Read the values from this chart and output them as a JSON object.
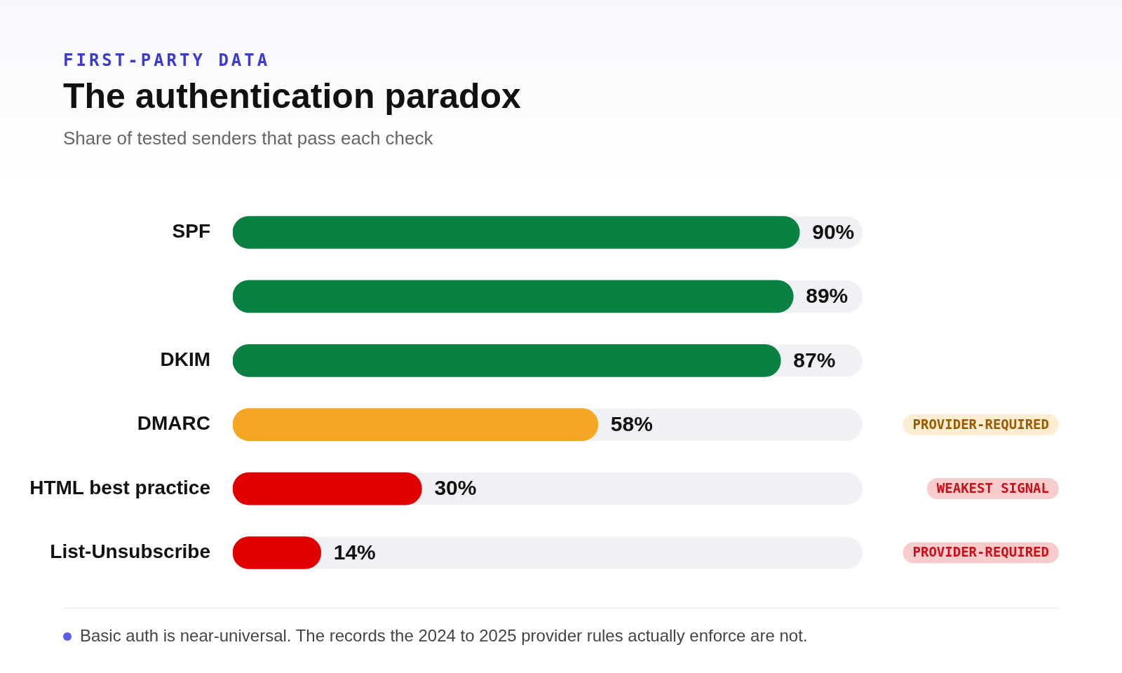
{
  "chart_data": {
    "type": "bar",
    "orientation": "horizontal",
    "title": "The authentication paradox",
    "subtitle": "Share of tested senders that pass each check",
    "legend_title": "FIRST-PARTY DATA",
    "categories": [
      "SPF",
      null,
      "DKIM",
      "DMARC",
      "HTML best practice",
      "List-Unsubscribe"
    ],
    "values": [
      90,
      89,
      87,
      58,
      30,
      14
    ],
    "colors": [
      "#0b8043",
      "#0b8043",
      "#0b8043",
      "#f5a623",
      "#e00000",
      "#e00000"
    ],
    "value_labels": [
      "90%",
      "89%",
      "87%",
      "58%",
      "30%",
      "14%"
    ],
    "xlim": [
      0,
      100
    ],
    "tick_labels": "y",
    "legend": false,
    "annotations": [
      "PROVIDER-REQUIRED",
      "WEAKEST SIGNAL",
      "PROVIDER-REQUIRED",
      "Basic auth is near-universal. The records the 2024 to 2025 provider rules actually enforce are not."
    ]
  }
}
